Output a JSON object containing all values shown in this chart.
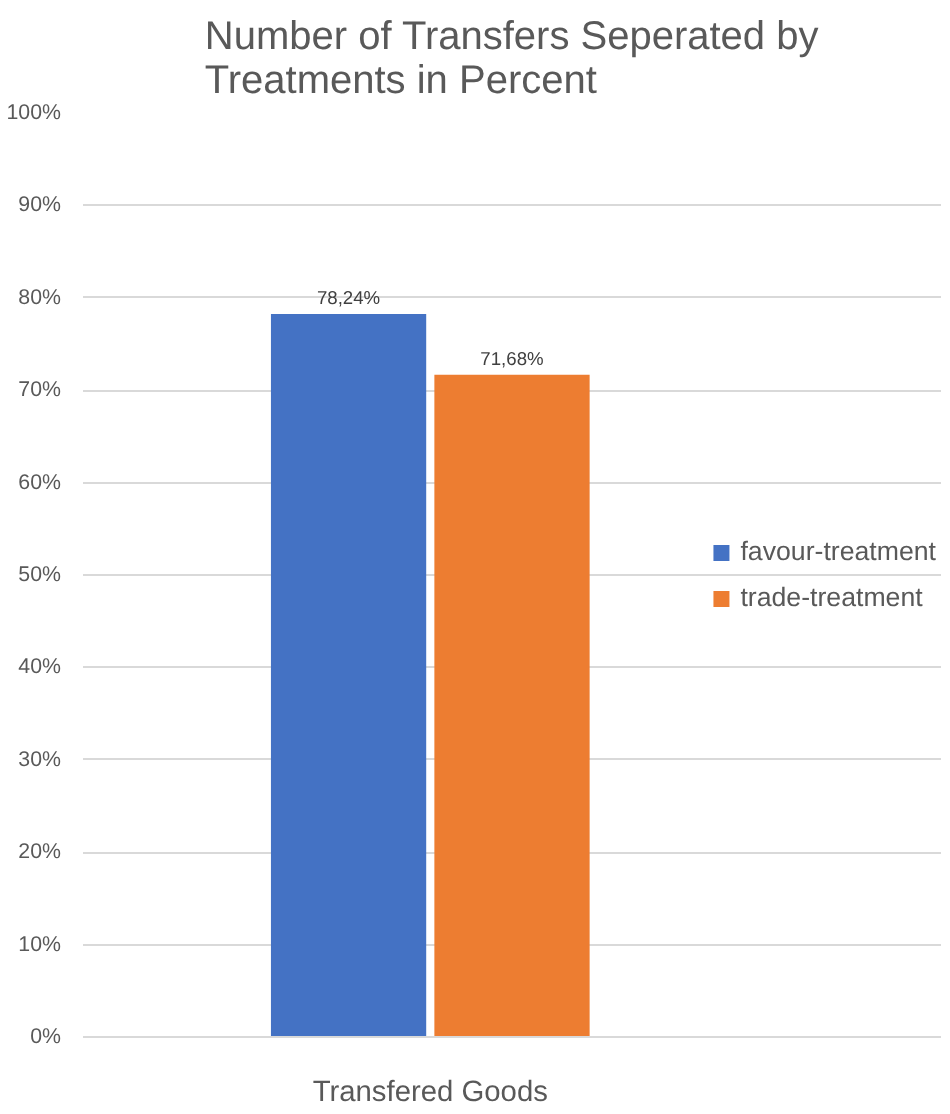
{
  "chart_data": {
    "type": "bar",
    "title": "Number of Transfers Seperated by Treatments in Percent",
    "categories": [
      "Transfered Goods"
    ],
    "series": [
      {
        "name": "favour-treatment",
        "color": "#4472c4",
        "values": [
          78.24
        ],
        "value_labels": [
          "78,24%"
        ]
      },
      {
        "name": "trade-treatment",
        "color": "#ed7d31",
        "values": [
          71.68
        ],
        "value_labels": [
          "71,68%"
        ]
      }
    ],
    "ylim": [
      0,
      100
    ],
    "yticks": [
      {
        "value": 0,
        "label": "0%"
      },
      {
        "value": 10,
        "label": "10%"
      },
      {
        "value": 20,
        "label": "20%"
      },
      {
        "value": 30,
        "label": "30%"
      },
      {
        "value": 40,
        "label": "40%"
      },
      {
        "value": 50,
        "label": "50%"
      },
      {
        "value": 60,
        "label": "60%"
      },
      {
        "value": 70,
        "label": "70%"
      },
      {
        "value": 80,
        "label": "80%"
      },
      {
        "value": 90,
        "label": "90%"
      },
      {
        "value": 100,
        "label": "100%"
      }
    ],
    "grid": "y",
    "legend": "right"
  }
}
